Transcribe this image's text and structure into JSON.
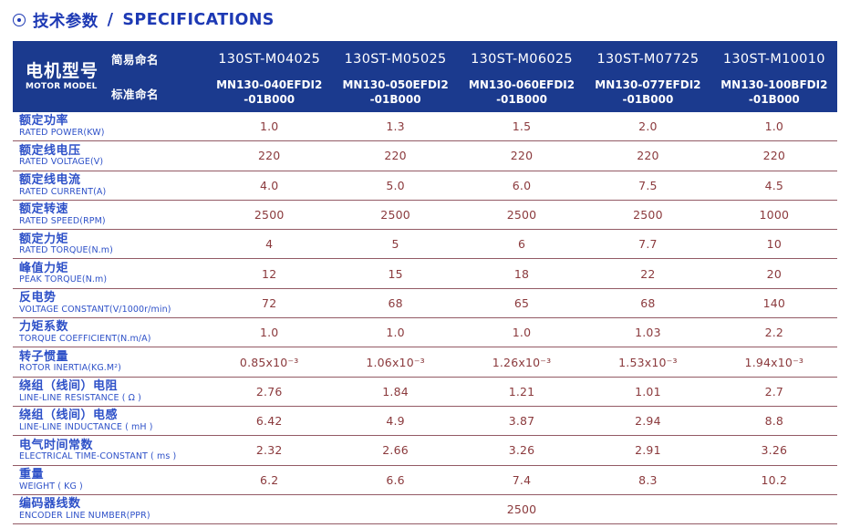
{
  "header": {
    "title_zh": "技术参数",
    "title_divider": "/",
    "title_en": "SPECIFICATIONS"
  },
  "table": {
    "corner_zh": "电机型号",
    "corner_en": "MOTOR MODEL",
    "naming_simple": "简易命名",
    "naming_standard": "标准命名",
    "columns": [
      {
        "simple_name": "130ST-M04025",
        "standard_name": "MN130-040EFDI2\n-01B000"
      },
      {
        "simple_name": "130ST-M05025",
        "standard_name": "MN130-050EFDI2\n-01B000"
      },
      {
        "simple_name": "130ST-M06025",
        "standard_name": "MN130-060EFDI2\n-01B000"
      },
      {
        "simple_name": "130ST-M07725",
        "standard_name": "MN130-077EFDI2\n-01B000"
      },
      {
        "simple_name": "130ST-M10010",
        "standard_name": "MN130-100BFDI2\n-01B000"
      }
    ],
    "rows": [
      {
        "zh": "额定功率",
        "en": "RATED POWER(KW)",
        "values": [
          "1.0",
          "1.3",
          "1.5",
          "2.0",
          "1.0"
        ]
      },
      {
        "zh": "额定线电压",
        "en": "RATED VOLTAGE(V)",
        "values": [
          "220",
          "220",
          "220",
          "220",
          "220"
        ]
      },
      {
        "zh": "额定线电流",
        "en": "RATED CURRENT(A)",
        "values": [
          "4.0",
          "5.0",
          "6.0",
          "7.5",
          "4.5"
        ]
      },
      {
        "zh": "额定转速",
        "en": "RATED SPEED(RPM)",
        "values": [
          "2500",
          "2500",
          "2500",
          "2500",
          "1000"
        ]
      },
      {
        "zh": "额定力矩",
        "en": "RATED TORQUE(N.m)",
        "values": [
          "4",
          "5",
          "6",
          "7.7",
          "10"
        ]
      },
      {
        "zh": "峰值力矩",
        "en": "PEAK TORQUE(N.m)",
        "values": [
          "12",
          "15",
          "18",
          "22",
          "20"
        ]
      },
      {
        "zh": "反电势",
        "en": "VOLTAGE CONSTANT(V/1000r/min)",
        "values": [
          "72",
          "68",
          "65",
          "68",
          "140"
        ]
      },
      {
        "zh": "力矩系数",
        "en": "TORQUE COEFFICIENT(N.m/A)",
        "values": [
          "1.0",
          "1.0",
          "1.0",
          "1.03",
          "2.2"
        ]
      },
      {
        "zh": "转子惯量",
        "en": "ROTOR INERTIA(KG.M²)",
        "values": [
          "0.85x10⁻³",
          "1.06x10⁻³",
          "1.26x10⁻³",
          "1.53x10⁻³",
          "1.94x10⁻³"
        ]
      },
      {
        "zh": "绕组（线间）电阻",
        "en": "LINE-LINE RESISTANCE ( Ω )",
        "values": [
          "2.76",
          "1.84",
          "1.21",
          "1.01",
          "2.7"
        ]
      },
      {
        "zh": "绕组（线间）电感",
        "en": "LINE-LINE INDUCTANCE ( mH )",
        "values": [
          "6.42",
          "4.9",
          "3.87",
          "2.94",
          "8.8"
        ]
      },
      {
        "zh": "电气时间常数",
        "en": "ELECTRICAL TIME-CONSTANT ( ms )",
        "values": [
          "2.32",
          "2.66",
          "3.26",
          "2.91",
          "3.26"
        ]
      },
      {
        "zh": "重量",
        "en": "WEIGHT ( KG )",
        "values": [
          "6.2",
          "6.6",
          "7.4",
          "8.3",
          "10.2"
        ]
      },
      {
        "zh": "编码器线数",
        "en": "ENCODER LINE NUMBER(PPR)",
        "values": [
          "2500"
        ],
        "span": 5
      }
    ]
  },
  "colors": {
    "header_bg": "#1b3a8e",
    "header_text": "#ffffff",
    "title_blue": "#1d39b4",
    "label_blue": "#2e51c8",
    "value_red": "#8b3a3d",
    "row_line": "#935a65"
  }
}
